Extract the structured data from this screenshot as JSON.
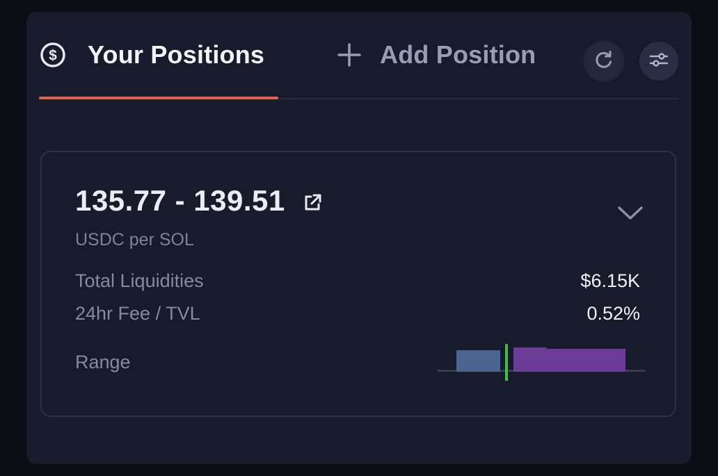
{
  "tabs": {
    "positions_label": "Your Positions",
    "add_label": "Add Position",
    "positions_icon": "dollar-circle-icon",
    "add_icon": "plus-icon",
    "refresh_icon": "refresh-icon",
    "settings_icon": "sliders-icon"
  },
  "position": {
    "price_range": "135.77 - 139.51",
    "unit": "USDC per SOL",
    "rows": [
      {
        "label": "Total Liquidities",
        "value": "$6.15K"
      },
      {
        "label": "24hr Fee / TVL",
        "value": "0.52%"
      }
    ],
    "range_label": "Range"
  },
  "range_chart": {
    "lower_price": 135.77,
    "upper_price": 139.51,
    "colors": {
      "below_current": "#4c6590",
      "above_current": "#6b3d98",
      "current_price_marker": "#3fc23a",
      "baseline": "#3a3d52"
    }
  },
  "colors": {
    "accent": "#e0654a",
    "panel_bg": "#181b2b"
  }
}
